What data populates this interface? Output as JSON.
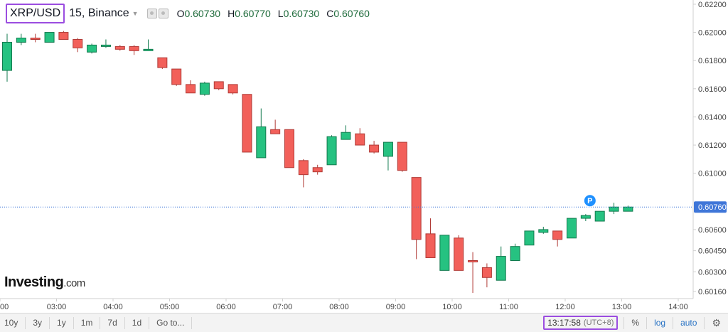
{
  "header": {
    "symbol": "XRP/USD",
    "interval_exchange": "15, Binance",
    "ohlc": [
      {
        "label": "O",
        "value": "0.60730"
      },
      {
        "label": "H",
        "value": "0.60770"
      },
      {
        "label": "L",
        "value": "0.60730"
      },
      {
        "label": "C",
        "value": "0.60760"
      }
    ]
  },
  "logo": {
    "main": "Investing",
    "suffix": ".com"
  },
  "chart_data": {
    "type": "candlestick",
    "ylim": [
      0.6011,
      0.6223
    ],
    "y_ticks": [
      "0.62200",
      "0.62000",
      "0.61800",
      "0.61600",
      "0.61400",
      "0.61200",
      "0.61000",
      "0.60760",
      "0.60600",
      "0.60450",
      "0.60300",
      "0.60160"
    ],
    "current_price": "0.60760",
    "x_labels": [
      "00",
      "03:00",
      "04:00",
      "05:00",
      "06:00",
      "07:00",
      "08:00",
      "09:00",
      "10:00",
      "11:00",
      "12:00",
      "13:00",
      "14:00"
    ],
    "marker_label": "P",
    "colors": {
      "up": "#26c281",
      "down": "#f2605a",
      "up_stroke": "#127a4e",
      "down_stroke": "#b03a36",
      "price_line": "#3f76d8"
    },
    "candles": [
      {
        "o": 0.6173,
        "h": 0.6199,
        "l": 0.6165,
        "c": 0.6193
      },
      {
        "o": 0.6193,
        "h": 0.6199,
        "l": 0.6191,
        "c": 0.6196
      },
      {
        "o": 0.6196,
        "h": 0.6199,
        "l": 0.6193,
        "c": 0.6195
      },
      {
        "o": 0.6193,
        "h": 0.62,
        "l": 0.6193,
        "c": 0.62
      },
      {
        "o": 0.62,
        "h": 0.6201,
        "l": 0.6195,
        "c": 0.6195
      },
      {
        "o": 0.6195,
        "h": 0.6196,
        "l": 0.6186,
        "c": 0.6189
      },
      {
        "o": 0.6186,
        "h": 0.6192,
        "l": 0.6185,
        "c": 0.6191
      },
      {
        "o": 0.619,
        "h": 0.6195,
        "l": 0.6189,
        "c": 0.6191
      },
      {
        "o": 0.619,
        "h": 0.6191,
        "l": 0.6187,
        "c": 0.6188
      },
      {
        "o": 0.619,
        "h": 0.6191,
        "l": 0.6184,
        "c": 0.6187
      },
      {
        "o": 0.6187,
        "h": 0.6195,
        "l": 0.6187,
        "c": 0.6188
      },
      {
        "o": 0.6182,
        "h": 0.6182,
        "l": 0.6174,
        "c": 0.6175
      },
      {
        "o": 0.6174,
        "h": 0.6174,
        "l": 0.6162,
        "c": 0.6163
      },
      {
        "o": 0.6163,
        "h": 0.6166,
        "l": 0.6157,
        "c": 0.6157
      },
      {
        "o": 0.6156,
        "h": 0.6165,
        "l": 0.6155,
        "c": 0.6164
      },
      {
        "o": 0.6165,
        "h": 0.6165,
        "l": 0.6159,
        "c": 0.616
      },
      {
        "o": 0.6163,
        "h": 0.6163,
        "l": 0.6156,
        "c": 0.6157
      },
      {
        "o": 0.6156,
        "h": 0.6156,
        "l": 0.6115,
        "c": 0.6115
      },
      {
        "o": 0.6111,
        "h": 0.6146,
        "l": 0.6111,
        "c": 0.6133
      },
      {
        "o": 0.6131,
        "h": 0.6138,
        "l": 0.6128,
        "c": 0.6128
      },
      {
        "o": 0.6131,
        "h": 0.6131,
        "l": 0.6104,
        "c": 0.6104
      },
      {
        "o": 0.6109,
        "h": 0.611,
        "l": 0.609,
        "c": 0.6099
      },
      {
        "o": 0.6104,
        "h": 0.6106,
        "l": 0.6099,
        "c": 0.6101
      },
      {
        "o": 0.6106,
        "h": 0.6127,
        "l": 0.6106,
        "c": 0.6126
      },
      {
        "o": 0.6124,
        "h": 0.6134,
        "l": 0.6124,
        "c": 0.6129
      },
      {
        "o": 0.6128,
        "h": 0.6132,
        "l": 0.6121,
        "c": 0.612
      },
      {
        "o": 0.612,
        "h": 0.6123,
        "l": 0.6114,
        "c": 0.6115
      },
      {
        "o": 0.6112,
        "h": 0.6122,
        "l": 0.6102,
        "c": 0.6122
      },
      {
        "o": 0.6122,
        "h": 0.6122,
        "l": 0.6101,
        "c": 0.6102
      },
      {
        "o": 0.6097,
        "h": 0.6097,
        "l": 0.6039,
        "c": 0.6053
      },
      {
        "o": 0.6057,
        "h": 0.6068,
        "l": 0.604,
        "c": 0.604
      },
      {
        "o": 0.6031,
        "h": 0.6056,
        "l": 0.6031,
        "c": 0.6056
      },
      {
        "o": 0.6054,
        "h": 0.6056,
        "l": 0.6031,
        "c": 0.6031
      },
      {
        "o": 0.6038,
        "h": 0.6044,
        "l": 0.6015,
        "c": 0.6037
      },
      {
        "o": 0.6033,
        "h": 0.6036,
        "l": 0.6019,
        "c": 0.6026
      },
      {
        "o": 0.6024,
        "h": 0.6048,
        "l": 0.6024,
        "c": 0.6041
      },
      {
        "o": 0.6038,
        "h": 0.605,
        "l": 0.6038,
        "c": 0.6048
      },
      {
        "o": 0.6049,
        "h": 0.6059,
        "l": 0.6049,
        "c": 0.6059
      },
      {
        "o": 0.6058,
        "h": 0.6062,
        "l": 0.6057,
        "c": 0.606
      },
      {
        "o": 0.6059,
        "h": 0.6059,
        "l": 0.6048,
        "c": 0.6053
      },
      {
        "o": 0.6054,
        "h": 0.6068,
        "l": 0.6054,
        "c": 0.6068
      },
      {
        "o": 0.6068,
        "h": 0.6071,
        "l": 0.6066,
        "c": 0.607
      },
      {
        "o": 0.6066,
        "h": 0.6073,
        "l": 0.6066,
        "c": 0.6073
      },
      {
        "o": 0.6073,
        "h": 0.6079,
        "l": 0.6071,
        "c": 0.6076
      },
      {
        "o": 0.6073,
        "h": 0.6077,
        "l": 0.6073,
        "c": 0.6076
      }
    ]
  },
  "bottom_bar": {
    "ranges": [
      "10y",
      "3y",
      "1y",
      "1m",
      "7d",
      "1d",
      "Go to..."
    ],
    "clock_time": "13:17:58",
    "clock_tz": "(UTC+8)",
    "options": [
      "%",
      "log",
      "auto"
    ]
  }
}
